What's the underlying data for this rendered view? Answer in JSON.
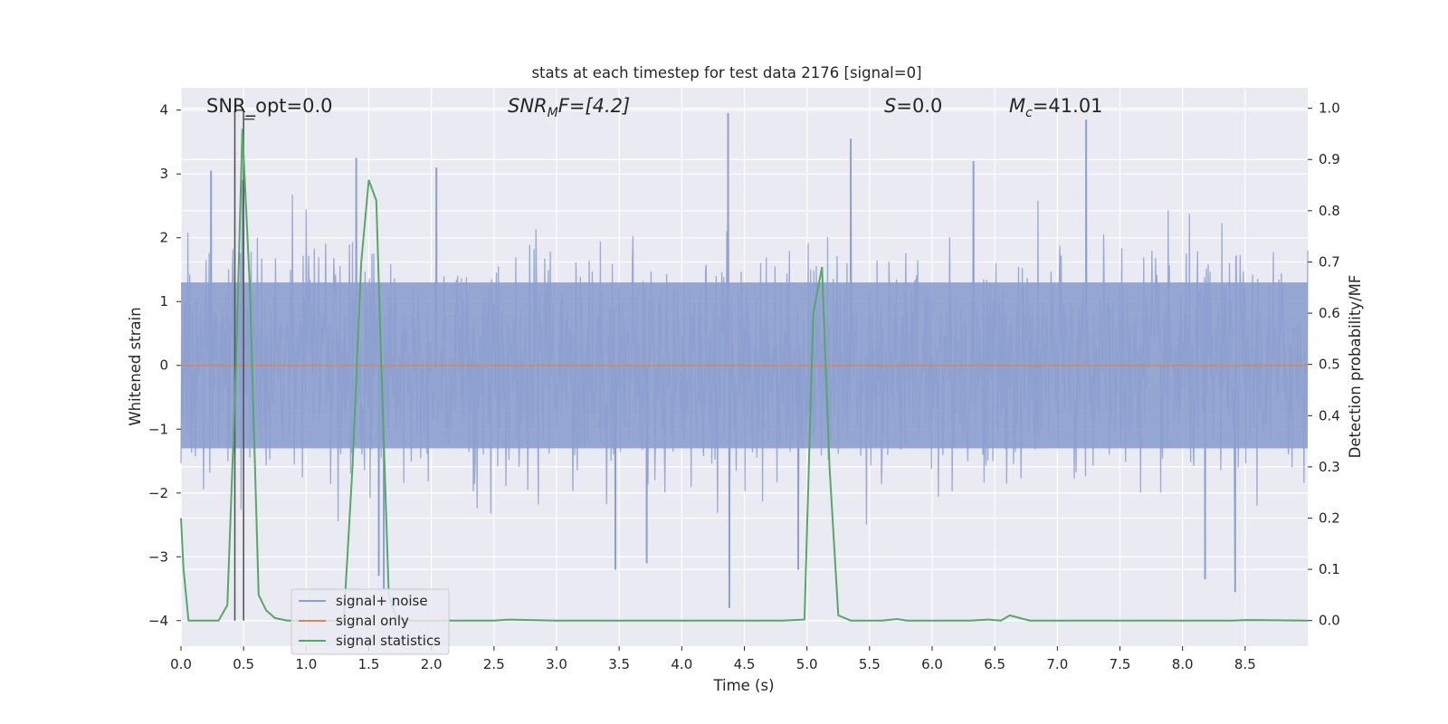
{
  "chart_data": {
    "type": "line",
    "title": "stats at each timestep for test data 2176 [signal=0]",
    "xlabel": "Time (s)",
    "ylabel_left": "Whitened strain",
    "ylabel_right": "Detection probability/MF",
    "xlim": [
      0.0,
      9.0
    ],
    "ylim_left": [
      -4.4,
      4.35
    ],
    "ylim_right": [
      -0.05,
      1.04
    ],
    "xticks": [
      "0.0",
      "0.5",
      "1.0",
      "1.5",
      "2.0",
      "2.5",
      "3.0",
      "3.5",
      "4.0",
      "4.5",
      "5.0",
      "5.5",
      "6.0",
      "6.5",
      "7.0",
      "7.5",
      "8.0",
      "8.5"
    ],
    "yticks_left": [
      "−4",
      "−3",
      "−2",
      "−1",
      "0",
      "1",
      "2",
      "3",
      "4"
    ],
    "yticks_right": [
      "0.0",
      "0.1",
      "0.2",
      "0.3",
      "0.4",
      "0.5",
      "0.6",
      "0.7",
      "0.8",
      "0.9",
      "1.0"
    ],
    "annotations": {
      "snr_opt": "SNR_opt=0.0",
      "snr_mf_main": "SNR",
      "snr_mf_sub": "M",
      "snr_mf_rest": "F=[4.2]",
      "s_main": "S",
      "s_rest": "=0.0",
      "mc_main": "M",
      "mc_sub": "c",
      "mc_rest": "=41.01"
    },
    "legend": {
      "placement": "lower-left",
      "entries": [
        "signal+ noise",
        "signal only",
        "signal statistics"
      ]
    },
    "colors": {
      "noise": "#8c9fcf",
      "signal_only": "#dd8452",
      "statistics": "#55a868",
      "marker": "#555555",
      "axes_bg": "#eaeaf2",
      "grid": "#ffffff"
    },
    "series": [
      {
        "name": "signal+ noise",
        "kind": "noise",
        "sample_rate_hz": 200,
        "envelope_typical": 2.2,
        "peaks": [
          {
            "x": 0.24,
            "y": 3.05
          },
          {
            "x": 0.49,
            "y": 2.9
          },
          {
            "x": 1.4,
            "y": 3.25
          },
          {
            "x": 1.58,
            "y": -3.3
          },
          {
            "x": 1.62,
            "y": -3.5
          },
          {
            "x": 2.04,
            "y": 3.1
          },
          {
            "x": 3.47,
            "y": -3.2
          },
          {
            "x": 3.72,
            "y": -3.1
          },
          {
            "x": 4.37,
            "y": 3.95
          },
          {
            "x": 4.38,
            "y": -3.8
          },
          {
            "x": 4.93,
            "y": -3.2
          },
          {
            "x": 5.35,
            "y": 3.55
          },
          {
            "x": 6.33,
            "y": 3.2
          },
          {
            "x": 7.23,
            "y": 3.85
          },
          {
            "x": 8.18,
            "y": -3.35
          },
          {
            "x": 8.42,
            "y": -3.55
          }
        ]
      },
      {
        "name": "signal only",
        "kind": "flat",
        "value": 0.0
      },
      {
        "name": "signal statistics",
        "kind": "line",
        "axis": "right",
        "x": [
          0.0,
          0.02,
          0.06,
          0.15,
          0.3,
          0.37,
          0.44,
          0.49,
          0.55,
          0.62,
          0.68,
          0.75,
          0.85,
          0.95,
          1.3,
          1.37,
          1.44,
          1.5,
          1.56,
          1.6,
          1.66,
          1.72,
          1.85,
          2.5,
          2.62,
          3.0,
          4.0,
          4.8,
          4.98,
          5.05,
          5.12,
          5.18,
          5.25,
          5.35,
          5.6,
          5.72,
          5.8,
          6.3,
          6.45,
          6.55,
          6.62,
          6.7,
          6.78,
          6.85,
          7.5,
          8.4,
          8.5,
          9.0
        ],
        "y": [
          0.2,
          0.1,
          0.0,
          0.0,
          0.0,
          0.03,
          0.5,
          0.96,
          0.65,
          0.05,
          0.02,
          0.005,
          0.0,
          0.0,
          0.0,
          0.3,
          0.7,
          0.86,
          0.82,
          0.5,
          0.05,
          0.005,
          0.0,
          0.0,
          0.002,
          0.0,
          0.0,
          0.0,
          0.002,
          0.6,
          0.69,
          0.3,
          0.01,
          0.0,
          0.0,
          0.003,
          0.0,
          0.0,
          0.002,
          0.0,
          0.01,
          0.005,
          0.0,
          0.0,
          0.0,
          0.0,
          0.001,
          0.0
        ]
      }
    ],
    "markers": [
      {
        "x": 0.43,
        "y_top": 4.0,
        "y_bottom": -4.0
      },
      {
        "x": 0.5,
        "y_top": 4.0,
        "y_bottom": -4.0
      }
    ]
  }
}
